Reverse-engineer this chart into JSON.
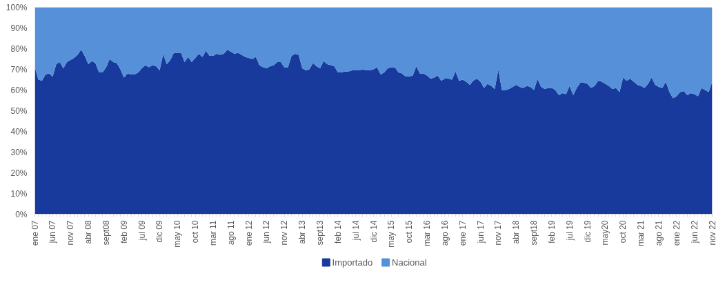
{
  "chart_data": {
    "type": "area",
    "stacked": true,
    "categories": [
      "ene 07",
      null,
      null,
      null,
      null,
      "jun 07",
      null,
      null,
      null,
      null,
      "nov 07",
      null,
      null,
      null,
      null,
      "abr 08",
      null,
      null,
      null,
      null,
      "sept08",
      null,
      null,
      null,
      null,
      "feb 09",
      null,
      null,
      null,
      null,
      "jul 09",
      null,
      null,
      null,
      null,
      "dic 09",
      null,
      null,
      null,
      null,
      "may 10",
      null,
      null,
      null,
      null,
      "oct 10",
      null,
      null,
      null,
      null,
      "mar 11",
      null,
      null,
      null,
      null,
      "ago 11",
      null,
      null,
      null,
      null,
      "ene 12",
      null,
      null,
      null,
      null,
      "jun 12",
      null,
      null,
      null,
      null,
      "nov 12",
      null,
      null,
      null,
      null,
      "abr 13",
      null,
      null,
      null,
      null,
      "sept13",
      null,
      null,
      null,
      null,
      "feb 14",
      null,
      null,
      null,
      null,
      "jul 14",
      null,
      null,
      null,
      null,
      "dic 14",
      null,
      null,
      null,
      null,
      "may 15",
      null,
      null,
      null,
      null,
      "oct 15",
      null,
      null,
      null,
      null,
      "mar 16",
      null,
      null,
      null,
      null,
      "ago 16",
      null,
      null,
      null,
      null,
      "ene 17",
      null,
      null,
      null,
      null,
      "jun 17",
      null,
      null,
      null,
      null,
      "nov 17",
      null,
      null,
      null,
      null,
      "abr 18",
      null,
      null,
      null,
      null,
      "sept18",
      null,
      null,
      null,
      null,
      "feb 19",
      null,
      null,
      null,
      null,
      "jul 19",
      null,
      null,
      null,
      null,
      "dic 19",
      null,
      null,
      null,
      null,
      "may20",
      null,
      null,
      null,
      null,
      "oct 20",
      null,
      null,
      null,
      null,
      "mar 21",
      null,
      null,
      null,
      null,
      "ago 21",
      null,
      null,
      null,
      null,
      "ene 22",
      null,
      null,
      null,
      null,
      "jun 22",
      null,
      null,
      null,
      null,
      "nov 22"
    ],
    "series": [
      {
        "name": "Importado",
        "color": "#173a9c",
        "values": [
          71,
          65,
          64.5,
          67.5,
          68,
          66.5,
          72.5,
          73.5,
          70.5,
          73.5,
          74.5,
          75.5,
          77,
          79.5,
          76.5,
          72.5,
          74,
          73,
          68.5,
          68.5,
          71,
          75,
          73.5,
          73,
          70,
          66,
          68,
          67.5,
          67.5,
          68.5,
          70.5,
          72,
          71,
          72,
          71.5,
          69.5,
          77.5,
          72.5,
          74.5,
          78,
          78,
          78,
          73.5,
          76,
          73.5,
          75.5,
          77.5,
          76,
          79,
          76.5,
          76.5,
          77.5,
          77,
          77.5,
          79.5,
          78.5,
          77.5,
          78,
          77,
          76,
          75.5,
          75,
          76,
          72,
          71,
          70.5,
          71.5,
          72,
          73.5,
          73.5,
          71,
          71,
          76.5,
          77.5,
          77,
          70.5,
          69.5,
          70,
          73,
          71.5,
          70.5,
          74,
          72.5,
          72,
          71.5,
          68.5,
          68.5,
          69,
          69,
          69.5,
          69.5,
          69.5,
          70,
          69.5,
          69.5,
          70,
          71,
          67.5,
          68.5,
          70.5,
          71,
          71,
          68.5,
          68,
          66.5,
          66.5,
          67,
          71.5,
          68,
          68,
          67,
          65.5,
          66,
          67,
          64.5,
          65.5,
          65.5,
          65,
          69,
          64.5,
          65,
          64,
          62.5,
          64.5,
          65.5,
          64,
          61,
          63,
          62,
          60.5,
          70,
          60,
          60,
          60.5,
          61.5,
          62.5,
          61.5,
          61,
          62,
          61.5,
          60,
          65.5,
          61.5,
          60.5,
          61,
          61,
          60,
          57.5,
          58.5,
          58,
          62,
          57.5,
          61,
          63.5,
          63.5,
          63,
          61,
          62,
          64.5,
          64,
          63,
          62,
          60.5,
          61,
          59,
          66,
          64.5,
          65.5,
          64,
          62.5,
          62,
          61,
          63,
          66,
          62.5,
          61.5,
          61,
          64,
          59,
          56,
          57,
          59,
          59.5,
          57.5,
          58.5,
          58,
          57,
          61,
          60,
          59,
          64
        ]
      },
      {
        "name": "Nacional",
        "color": "#5590d9",
        "values": [
          29,
          35,
          35.5,
          32.5,
          32,
          33.5,
          27.5,
          26.5,
          29.5,
          26.5,
          25.5,
          24.5,
          23,
          20.5,
          23.5,
          27.5,
          26,
          27,
          31.5,
          31.5,
          29,
          25,
          26.5,
          27,
          30,
          34,
          32,
          32.5,
          32.5,
          31.5,
          29.5,
          28,
          29,
          28,
          28.5,
          30.5,
          22.5,
          27.5,
          25.5,
          22,
          22,
          22,
          26.5,
          24,
          26.5,
          24.5,
          22.5,
          24,
          21,
          23.5,
          23.5,
          22.5,
          23,
          22.5,
          20.5,
          21.5,
          22.5,
          22,
          23,
          24,
          24.5,
          25,
          24,
          28,
          29,
          29.5,
          28.5,
          28,
          26.5,
          26.5,
          29,
          29,
          23.5,
          22.5,
          23,
          29.5,
          30.5,
          30,
          27,
          28.5,
          29.5,
          26,
          27.5,
          28,
          28.5,
          31.5,
          31.5,
          31,
          31,
          30.5,
          30.5,
          30.5,
          30,
          30.5,
          30.5,
          30,
          29,
          32.5,
          31.5,
          29.5,
          29,
          29,
          31.5,
          32,
          33.5,
          33.5,
          33,
          28.5,
          32,
          32,
          33,
          34.5,
          34,
          33,
          35.5,
          34.5,
          34.5,
          35,
          31,
          35.5,
          35,
          36,
          37.5,
          35.5,
          34.5,
          36,
          39,
          37,
          38,
          39.5,
          30,
          40,
          40,
          39.5,
          38.5,
          37.5,
          38.5,
          39,
          38,
          38.5,
          40,
          34.5,
          38.5,
          39.5,
          39,
          39,
          40,
          42.5,
          41.5,
          42,
          38,
          42.5,
          39,
          36.5,
          36.5,
          37,
          39,
          38,
          35.5,
          36,
          37,
          38,
          39.5,
          39,
          41,
          34,
          35.5,
          34.5,
          36,
          37.5,
          38,
          39,
          37,
          34,
          37.5,
          38.5,
          39,
          36,
          41,
          44,
          43,
          41,
          40.5,
          42.5,
          41.5,
          42,
          43,
          39,
          40,
          41,
          36
        ]
      }
    ],
    "ylim": [
      0,
      100
    ],
    "yticks": [
      {
        "value": 0,
        "label": "0%"
      },
      {
        "value": 10,
        "label": "10%"
      },
      {
        "value": 20,
        "label": "20%"
      },
      {
        "value": 30,
        "label": "30%"
      },
      {
        "value": 40,
        "label": "40%"
      },
      {
        "value": 50,
        "label": "50%"
      },
      {
        "value": 60,
        "label": "60%"
      },
      {
        "value": 70,
        "label": "70%"
      },
      {
        "value": 80,
        "label": "80%"
      },
      {
        "value": 90,
        "label": "90%"
      },
      {
        "value": 100,
        "label": "100%"
      }
    ],
    "grid": false,
    "legend": "bottom"
  }
}
